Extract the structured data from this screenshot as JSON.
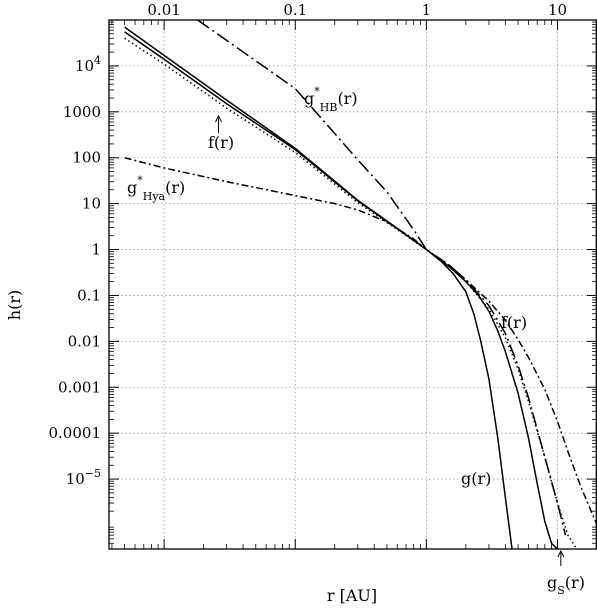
{
  "chart_data": {
    "type": "line",
    "title": "",
    "xlabel": "r [AU]",
    "ylabel": "h(r)",
    "xscale": "log",
    "yscale": "log",
    "xlim": [
      0.0038,
      20
    ],
    "ylim": [
      3e-07,
      100000.0
    ],
    "grid": true,
    "x_ticks": [
      {
        "value": 0.01,
        "label": "0.01"
      },
      {
        "value": 0.1,
        "label": "0.1"
      },
      {
        "value": 1,
        "label": "1"
      },
      {
        "value": 10,
        "label": "10"
      }
    ],
    "y_ticks": [
      {
        "value": 1e-05,
        "base": "10",
        "exp": "−5"
      },
      {
        "value": 0.0001,
        "label": "0.0001"
      },
      {
        "value": 0.001,
        "label": "0.001"
      },
      {
        "value": 0.01,
        "label": "0.01"
      },
      {
        "value": 0.1,
        "label": "0.1"
      },
      {
        "value": 1,
        "label": "1"
      },
      {
        "value": 10,
        "label": "10"
      },
      {
        "value": 100,
        "label": "100"
      },
      {
        "value": 1000,
        "label": "1000"
      },
      {
        "value": 10000,
        "base": "10",
        "exp": "4"
      }
    ],
    "series": [
      {
        "name": "g(r)",
        "dash": "solid",
        "x": [
          0.005,
          0.01,
          0.03,
          0.1,
          0.3,
          0.5,
          0.8,
          1.0,
          1.3,
          1.6,
          2.0,
          2.3,
          2.6,
          3.0,
          3.5,
          4.0,
          4.5
        ],
        "y": [
          70000,
          17000,
          1800,
          160,
          11.8,
          4.2,
          1.6,
          1.0,
          0.55,
          0.3,
          0.12,
          0.04,
          0.01,
          0.0015,
          8e-05,
          4e-06,
          3e-07
        ]
      },
      {
        "name": "f(r)",
        "dash": "solid",
        "x": [
          0.005,
          0.01,
          0.03,
          0.1,
          0.3,
          0.5,
          0.8,
          1.0,
          1.5,
          2.0,
          2.5,
          3.0,
          3.5,
          4.0,
          5.0,
          6.0,
          7.0,
          8.0,
          9.0,
          10.0
        ],
        "y": [
          55000,
          14000,
          1500,
          150,
          11.5,
          4.1,
          1.58,
          1.0,
          0.42,
          0.2,
          0.1,
          0.045,
          0.017,
          0.006,
          0.00075,
          8e-05,
          8e-06,
          1.2e-06,
          4e-07,
          3e-07
        ]
      },
      {
        "name": "g_s(r)",
        "dash": "dotted",
        "x": [
          0.005,
          0.01,
          0.03,
          0.1,
          0.3,
          0.5,
          0.8,
          1.0,
          1.5,
          2.0,
          3.0,
          4.0,
          5.0,
          6.0,
          8.0,
          10.0,
          12.0,
          14.0
        ],
        "y": [
          40000,
          11000,
          1200,
          130,
          10.5,
          3.9,
          1.55,
          1.0,
          0.42,
          0.2,
          0.05,
          0.012,
          0.0025,
          0.0005,
          3e-05,
          3e-06,
          6e-07,
          3e-07
        ]
      },
      {
        "name": "g*_HB(r)",
        "dash": "longdash-dot",
        "x": [
          0.018,
          0.03,
          0.1,
          0.3,
          0.5,
          0.8,
          1.0,
          1.5,
          2.0,
          3.0,
          4.0,
          5.0,
          6.0,
          8.0,
          10.0,
          11.5
        ],
        "y": [
          100000,
          36000,
          3200,
          90,
          18,
          2.7,
          1.0,
          0.45,
          0.22,
          0.06,
          0.015,
          0.003,
          0.0006,
          3e-05,
          3e-06,
          6e-07
        ]
      },
      {
        "name": "g*_Hya(r)",
        "dash": "dash-dot",
        "x": [
          0.005,
          0.01,
          0.03,
          0.1,
          0.2,
          0.3,
          0.5,
          0.8,
          1.0,
          1.5,
          2.0,
          3.0,
          4.0,
          5.0,
          6.0,
          8.0,
          10.0,
          12.0,
          15.0,
          20.0
        ],
        "y": [
          100,
          60,
          30,
          15,
          10,
          7.3,
          4.0,
          1.7,
          1.0,
          0.45,
          0.22,
          0.075,
          0.029,
          0.011,
          0.0045,
          0.0009,
          0.00018,
          4e-05,
          7e-06,
          1e-06
        ]
      }
    ],
    "annotations": [
      {
        "id": "g",
        "text": "g(r)"
      },
      {
        "id": "f-upper",
        "text": "f(r)"
      },
      {
        "id": "f-lower",
        "text": "f(r)"
      },
      {
        "id": "hb",
        "base": "g",
        "sup": "*",
        "sub": "HB",
        "tail": "(r)"
      },
      {
        "id": "hya",
        "base": "g",
        "sup": "*",
        "sub": "Hya",
        "tail": "(r)"
      },
      {
        "id": "gs",
        "base": "g",
        "sub": "S",
        "tail": "(r)"
      }
    ]
  }
}
